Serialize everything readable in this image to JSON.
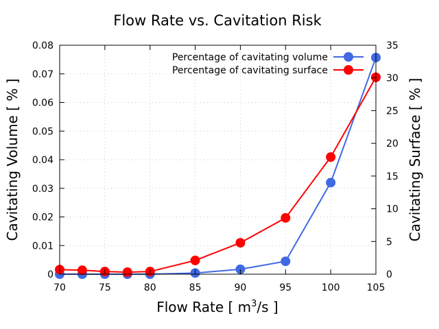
{
  "chart_data": {
    "type": "line",
    "title": "Flow Rate vs. Cavitation Risk",
    "xlabel_main": "Flow Rate [ m",
    "xlabel_sup": "3",
    "xlabel_tail": "/s ]",
    "xlabel": "Flow Rate [ m³/s ]",
    "ylabel": "Cavitating Volume [ % ]",
    "y2label": "Cavitating Surface [ % ]",
    "xlim": [
      70,
      105
    ],
    "ylim": [
      0,
      0.08
    ],
    "y2lim": [
      0,
      35
    ],
    "xticks": [
      "70",
      "75",
      "80",
      "85",
      "90",
      "95",
      "100",
      "105"
    ],
    "xtick_values": [
      70,
      75,
      80,
      85,
      90,
      95,
      100,
      105
    ],
    "yticks": [
      "0",
      "0.01",
      "0.02",
      "0.03",
      "0.04",
      "0.05",
      "0.06",
      "0.07",
      "0.08"
    ],
    "ytick_values": [
      0,
      0.01,
      0.02,
      0.03,
      0.04,
      0.05,
      0.06,
      0.07,
      0.08
    ],
    "y2ticks": [
      "0",
      "5",
      "10",
      "15",
      "20",
      "25",
      "30",
      "35"
    ],
    "y2tick_values": [
      0,
      5,
      10,
      15,
      20,
      25,
      30,
      35
    ],
    "grid": true,
    "legend_position": "top-right",
    "x": [
      70,
      72.5,
      75,
      77.5,
      80,
      85,
      90,
      95,
      100,
      105
    ],
    "series": [
      {
        "name": "Percentage of cavitating volume",
        "axis": "left",
        "color": "#4169e1",
        "values": [
          0.0,
          0.0,
          0.0,
          0.0,
          0.0,
          0.0004,
          0.0017,
          0.0045,
          0.032,
          0.0757
        ]
      },
      {
        "name": "Percentage of cavitating surface",
        "axis": "right",
        "color": "#ff0000",
        "values": [
          0.7,
          0.6,
          0.4,
          0.3,
          0.4,
          2.1,
          4.8,
          8.6,
          17.9,
          30.1
        ]
      }
    ]
  }
}
